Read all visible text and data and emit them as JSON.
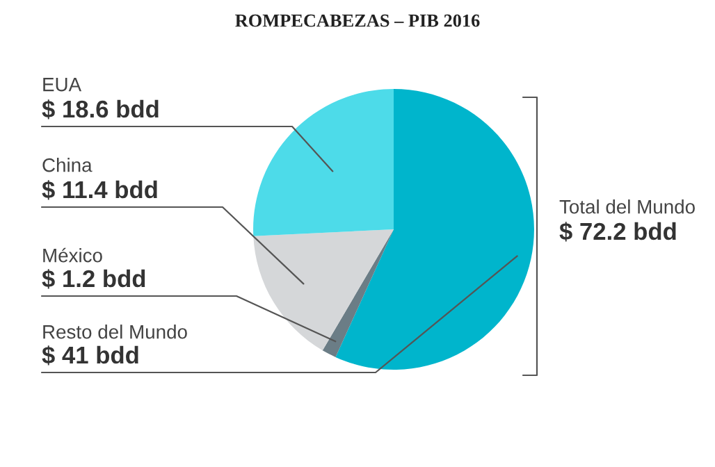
{
  "chart_data": {
    "type": "pie",
    "title": "ROMPECABEZAS – PIB 2016",
    "categories": [
      "EUA",
      "China",
      "México",
      "Resto del Mundo"
    ],
    "values": [
      18.6,
      11.4,
      1.2,
      41
    ],
    "value_labels": [
      "$ 18.6 bdd",
      "$ 11.4 bdd",
      "$ 1.2 bdd",
      "$ 41 bdd"
    ],
    "colors": [
      "#4ddbe9",
      "#d5d7d9",
      "#6b7d86",
      "#00b5cc"
    ],
    "annotations": [
      "Total del Mundo",
      "$ 72.2 bdd"
    ],
    "legend": false
  }
}
